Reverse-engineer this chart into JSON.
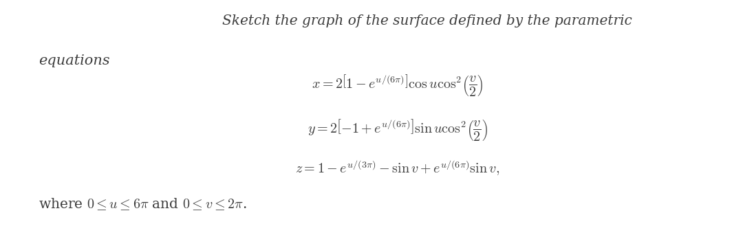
{
  "background_color": "#ffffff",
  "title_text": "Sketch the graph of the surface defined by the parametric",
  "eq1": "$x = 2\\left[1 - e^{u/(6\\pi)}\\right] \\cos u \\cos^2\\!\\left(\\dfrac{v}{2}\\right)$",
  "eq2": "$y = 2\\left[-1 + e^{u/(6\\pi)}\\right] \\sin u \\cos^2\\!\\left(\\dfrac{v}{2}\\right)$",
  "eq3": "$z = 1 - e^{u/(3\\pi)} - \\sin v + e^{u/(6\\pi)} \\sin v,$",
  "where_text": "where $0 \\leq u \\leq 6\\pi$ and $0 \\leq v \\leq 2\\pi$.",
  "text_color": "#3d3d3d",
  "font_size_title": 14.5,
  "font_size_eq": 14.5,
  "font_size_label": 15.0,
  "font_size_where": 14.5
}
